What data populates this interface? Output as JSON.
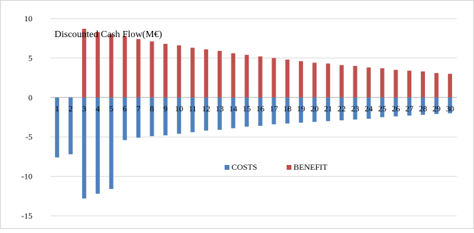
{
  "chart_data": {
    "type": "bar",
    "title": "Discounted Cash Flow(M€)",
    "xlabel": "",
    "ylabel": "",
    "ylim": [
      -15,
      10
    ],
    "yticks": [
      10,
      5,
      0,
      -5,
      -10,
      -15
    ],
    "grid": true,
    "legend_position": "center-right",
    "categories": [
      "1",
      "2",
      "3",
      "4",
      "5",
      "6",
      "7",
      "8",
      "9",
      "10",
      "11",
      "12",
      "13",
      "14",
      "15",
      "16",
      "17",
      "18",
      "19",
      "20",
      "21",
      "22",
      "23",
      "24",
      "25",
      "26",
      "27",
      "28",
      "29",
      "30"
    ],
    "series": [
      {
        "name": "COSTS",
        "color": "#4f81bd",
        "values": [
          -7.6,
          -7.2,
          -12.8,
          -12.2,
          -11.6,
          -5.4,
          -5.1,
          -4.9,
          -4.8,
          -4.6,
          -4.4,
          -4.2,
          -4.1,
          -3.9,
          -3.7,
          -3.6,
          -3.4,
          -3.3,
          -3.2,
          -3.1,
          -3.0,
          -2.9,
          -2.8,
          -2.7,
          -2.5,
          -2.4,
          -2.3,
          -2.2,
          -2.1,
          -2.0
        ]
      },
      {
        "name": "BENEFIT",
        "color": "#c0504d",
        "values": [
          0,
          0,
          8.7,
          8.3,
          8.0,
          7.8,
          7.4,
          7.1,
          6.8,
          6.6,
          6.3,
          6.1,
          5.9,
          5.6,
          5.4,
          5.2,
          5.0,
          4.8,
          4.6,
          4.4,
          4.3,
          4.1,
          4.0,
          3.8,
          3.7,
          3.5,
          3.4,
          3.3,
          3.1,
          3.0
        ]
      }
    ]
  }
}
